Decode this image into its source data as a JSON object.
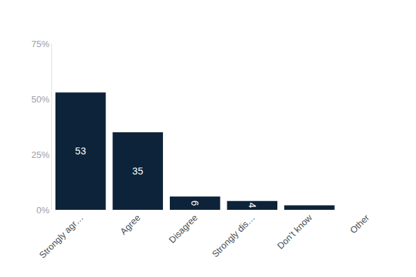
{
  "chart_data": {
    "type": "bar",
    "categories": [
      "Strongly agr…",
      "Agree",
      "Disagree",
      "Strongly dis…",
      "Don’t know",
      "Other"
    ],
    "values": [
      53,
      35,
      6,
      4,
      2,
      0
    ],
    "value_labels": [
      "53",
      "35",
      "6",
      "4",
      null,
      null
    ],
    "color": "#0d2339",
    "ylim": [
      0,
      75
    ],
    "yticks": [
      {
        "value": 0,
        "label": "0%"
      },
      {
        "value": 25,
        "label": "25%"
      },
      {
        "value": 50,
        "label": "50%"
      },
      {
        "value": 75,
        "label": "75%"
      }
    ],
    "grid": false,
    "data_labels": true
  }
}
